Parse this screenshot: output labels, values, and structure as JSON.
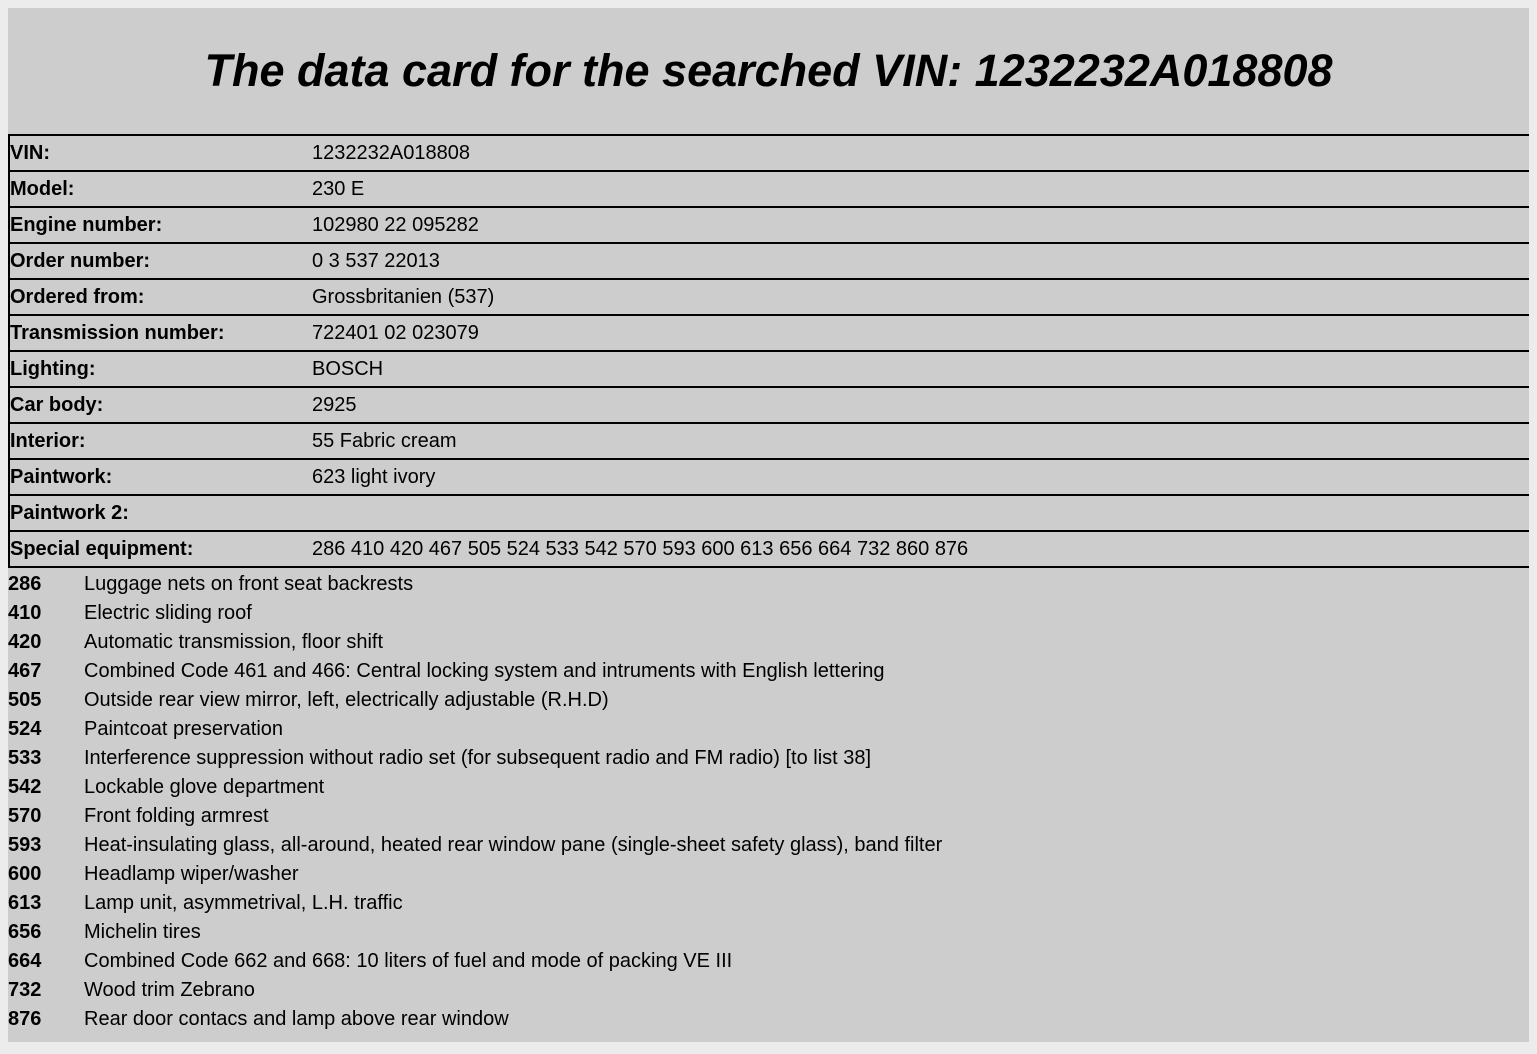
{
  "page": {
    "title": "The data card for the searched VIN: 1232232A018808",
    "colors": {
      "frame_background": "#ececec",
      "content_background": "#cdcdcd",
      "rule_lines": "#000000",
      "text": "#000000"
    }
  },
  "fields": [
    {
      "label": "VIN:",
      "value": "1232232A018808"
    },
    {
      "label": "Model:",
      "value": "230 E"
    },
    {
      "label": "Engine number:",
      "value": "102980 22 095282"
    },
    {
      "label": "Order number:",
      "value": "0 3 537 22013"
    },
    {
      "label": "Ordered from:",
      "value": "Grossbritanien (537)"
    },
    {
      "label": "Transmission number:",
      "value": "722401 02 023079"
    },
    {
      "label": "Lighting:",
      "value": "BOSCH"
    },
    {
      "label": "Car body:",
      "value": "2925"
    },
    {
      "label": "Interior:",
      "value": "55 Fabric cream"
    },
    {
      "label": "Paintwork:",
      "value": "623 light ivory"
    },
    {
      "label": "Paintwork 2:",
      "value": ""
    },
    {
      "label": "Special equipment:",
      "value": "286 410 420 467 505 524 533 542 570 593 600 613 656 664 732 860 876"
    }
  ],
  "equipment_codes": [
    {
      "code": "286",
      "description": "Luggage nets on front seat backrests"
    },
    {
      "code": "410",
      "description": "Electric sliding roof"
    },
    {
      "code": "420",
      "description": "Automatic transmission, floor shift"
    },
    {
      "code": "467",
      "description": "Combined Code 461 and 466: Central locking system and intruments with English lettering"
    },
    {
      "code": "505",
      "description": "Outside rear view mirror, left, electrically adjustable (R.H.D)"
    },
    {
      "code": "524",
      "description": "Paintcoat preservation"
    },
    {
      "code": "533",
      "description": "Interference suppression without radio set (for subsequent radio and FM radio) [to list 38]"
    },
    {
      "code": "542",
      "description": "Lockable glove department"
    },
    {
      "code": "570",
      "description": "Front folding armrest"
    },
    {
      "code": "593",
      "description": "Heat-insulating glass, all-around, heated rear window pane (single-sheet safety glass), band filter"
    },
    {
      "code": "600",
      "description": "Headlamp wiper/washer"
    },
    {
      "code": "613",
      "description": "Lamp unit, asymmetrival, L.H. traffic"
    },
    {
      "code": "656",
      "description": "Michelin tires"
    },
    {
      "code": "664",
      "description": "Combined Code 662 and 668: 10 liters of fuel and mode of packing VE III"
    },
    {
      "code": "732",
      "description": "Wood trim Zebrano"
    },
    {
      "code": "876",
      "description": "Rear door contacs and lamp above rear window"
    }
  ]
}
